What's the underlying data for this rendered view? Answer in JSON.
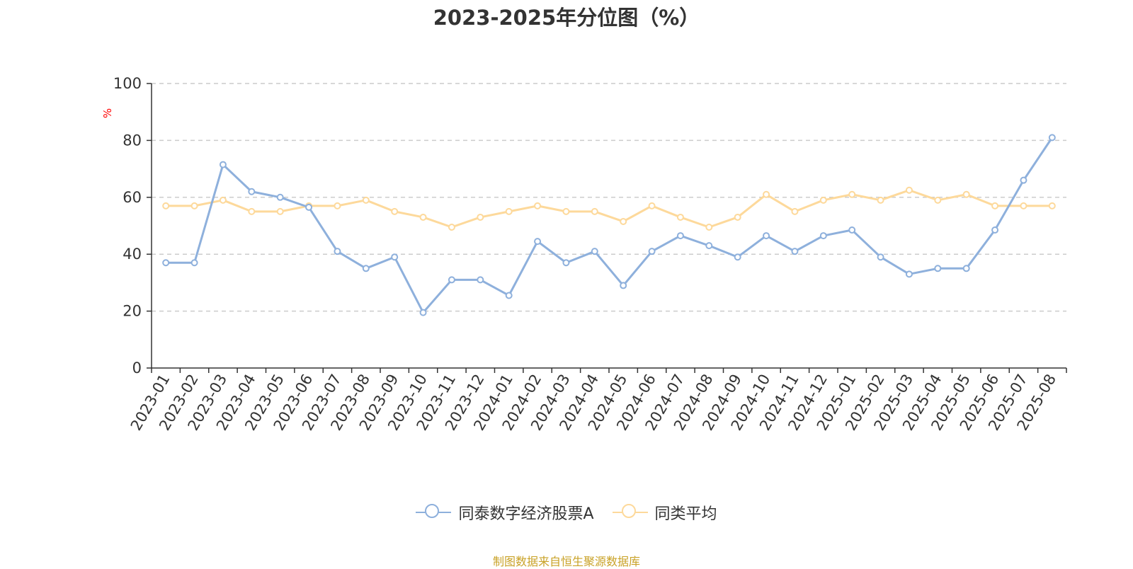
{
  "chart_data": {
    "type": "line",
    "title": "2023-2025年分位图（%）",
    "ylabel": "%",
    "xlabel": "",
    "ylim": [
      0,
      100
    ],
    "yticks": [
      "0",
      "20",
      "40",
      "60",
      "80",
      "100"
    ],
    "grid": true,
    "legend_position": "bottom-center",
    "categories": [
      "2023-01",
      "2023-02",
      "2023-03",
      "2023-04",
      "2023-05",
      "2023-06",
      "2023-07",
      "2023-08",
      "2023-09",
      "2023-10",
      "2023-11",
      "2023-12",
      "2024-01",
      "2024-02",
      "2024-03",
      "2024-04",
      "2024-05",
      "2024-06",
      "2024-07",
      "2024-08",
      "2024-09",
      "2024-10",
      "2024-11",
      "2024-12",
      "2025-01",
      "2025-02",
      "2025-03",
      "2025-04",
      "2025-05",
      "2025-06",
      "2025-07",
      "2025-08"
    ],
    "series": [
      {
        "name": "同泰数字经济股票A",
        "color": "#8eb0dc",
        "values": [
          37,
          37,
          71.5,
          62,
          60,
          56.5,
          41,
          35,
          39,
          19.5,
          31,
          31,
          25.5,
          44.5,
          37,
          41,
          29,
          41,
          46.5,
          43,
          39,
          46.5,
          41,
          46.5,
          48.5,
          39,
          33,
          35,
          35,
          48.5,
          66,
          81
        ]
      },
      {
        "name": "同类平均",
        "color": "#fdd99b",
        "values": [
          57,
          57,
          59,
          55,
          55,
          57,
          57,
          59,
          55,
          53,
          49.5,
          53,
          55,
          57,
          55,
          55,
          51.5,
          57,
          53,
          49.5,
          53,
          61,
          55,
          59,
          61,
          59,
          62.5,
          59,
          61,
          57,
          57,
          57
        ]
      }
    ]
  },
  "footer": {
    "source": "制图数据来自恒生聚源数据库",
    "source_color": "#c9a227"
  },
  "colors": {
    "axis": "#333333",
    "grid": "#cccccc",
    "ylabel": "#ff0000"
  }
}
